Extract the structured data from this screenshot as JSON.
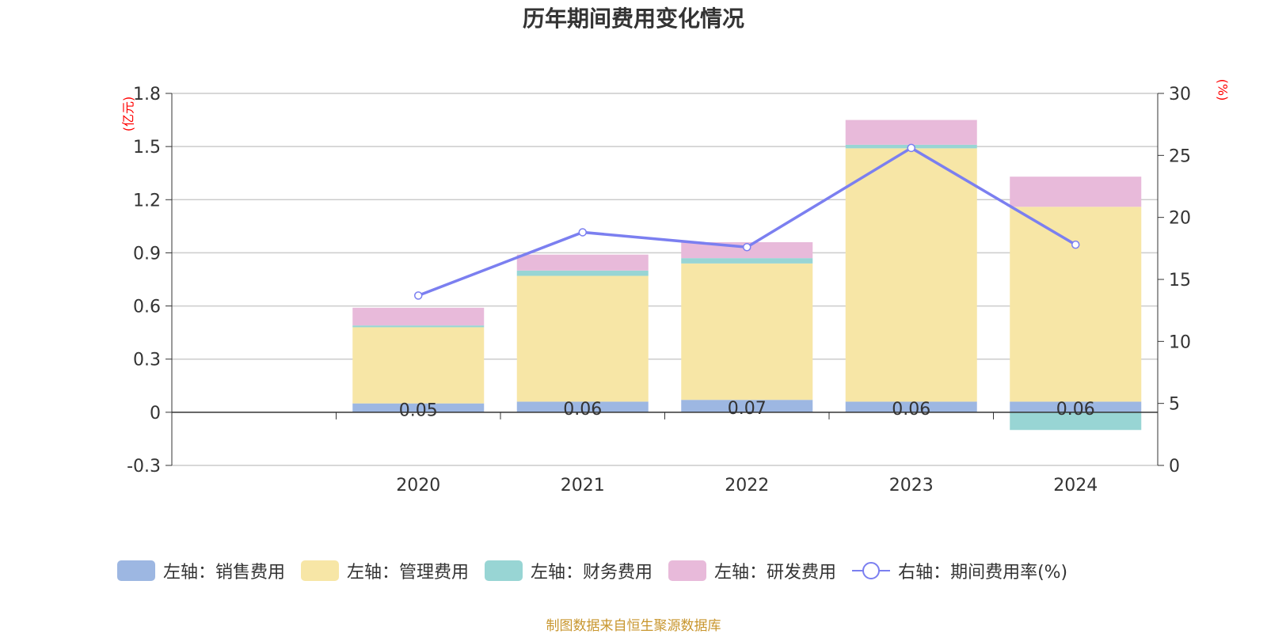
{
  "chart_data": {
    "type": "bar",
    "title": "历年期间费用变化情况",
    "categories": [
      "2020",
      "2021",
      "2022",
      "2023",
      "2024"
    ],
    "y_left": {
      "unit": "(亿元)",
      "min": -0.3,
      "max": 1.8,
      "ticks": [
        "-0.3",
        "0",
        "0.3",
        "0.6",
        "0.9",
        "1.2",
        "1.5",
        "1.8"
      ]
    },
    "y_right": {
      "unit": "(%)",
      "min": 0,
      "max": 30,
      "ticks": [
        "0",
        "5",
        "10",
        "15",
        "20",
        "25",
        "30"
      ]
    },
    "series": [
      {
        "name": "左轴：销售费用",
        "type": "bar",
        "stack": "left",
        "color": "#9db7e2",
        "values": [
          0.05,
          0.06,
          0.07,
          0.06,
          0.06
        ],
        "labels": [
          "0.05",
          "0.06",
          "0.07",
          "0.06",
          "0.06"
        ]
      },
      {
        "name": "左轴：管理费用",
        "type": "bar",
        "stack": "left",
        "color": "#f7e6a6",
        "values": [
          0.43,
          0.71,
          0.77,
          1.43,
          1.1
        ]
      },
      {
        "name": "左轴：财务费用",
        "type": "bar",
        "stack": "left",
        "color": "#98d5d4",
        "values": [
          0.01,
          0.03,
          0.03,
          0.02,
          -0.1
        ]
      },
      {
        "name": "左轴：研发费用",
        "type": "bar",
        "stack": "left",
        "color": "#e8bada",
        "values": [
          0.1,
          0.09,
          0.09,
          0.14,
          0.17
        ]
      },
      {
        "name": "右轴：期间费用率(%)",
        "type": "line",
        "axis": "right",
        "color": "#7b7ff0",
        "values": [
          13.7,
          18.8,
          17.6,
          25.6,
          17.8
        ]
      }
    ],
    "grid": true,
    "legend_position": "bottom"
  },
  "source_note": "制图数据来自恒生聚源数据库",
  "colors": {
    "title": "#333333",
    "unit": "#ff0000",
    "source": "#c8962e",
    "axis": "#333333",
    "grid": "#cccccc"
  }
}
